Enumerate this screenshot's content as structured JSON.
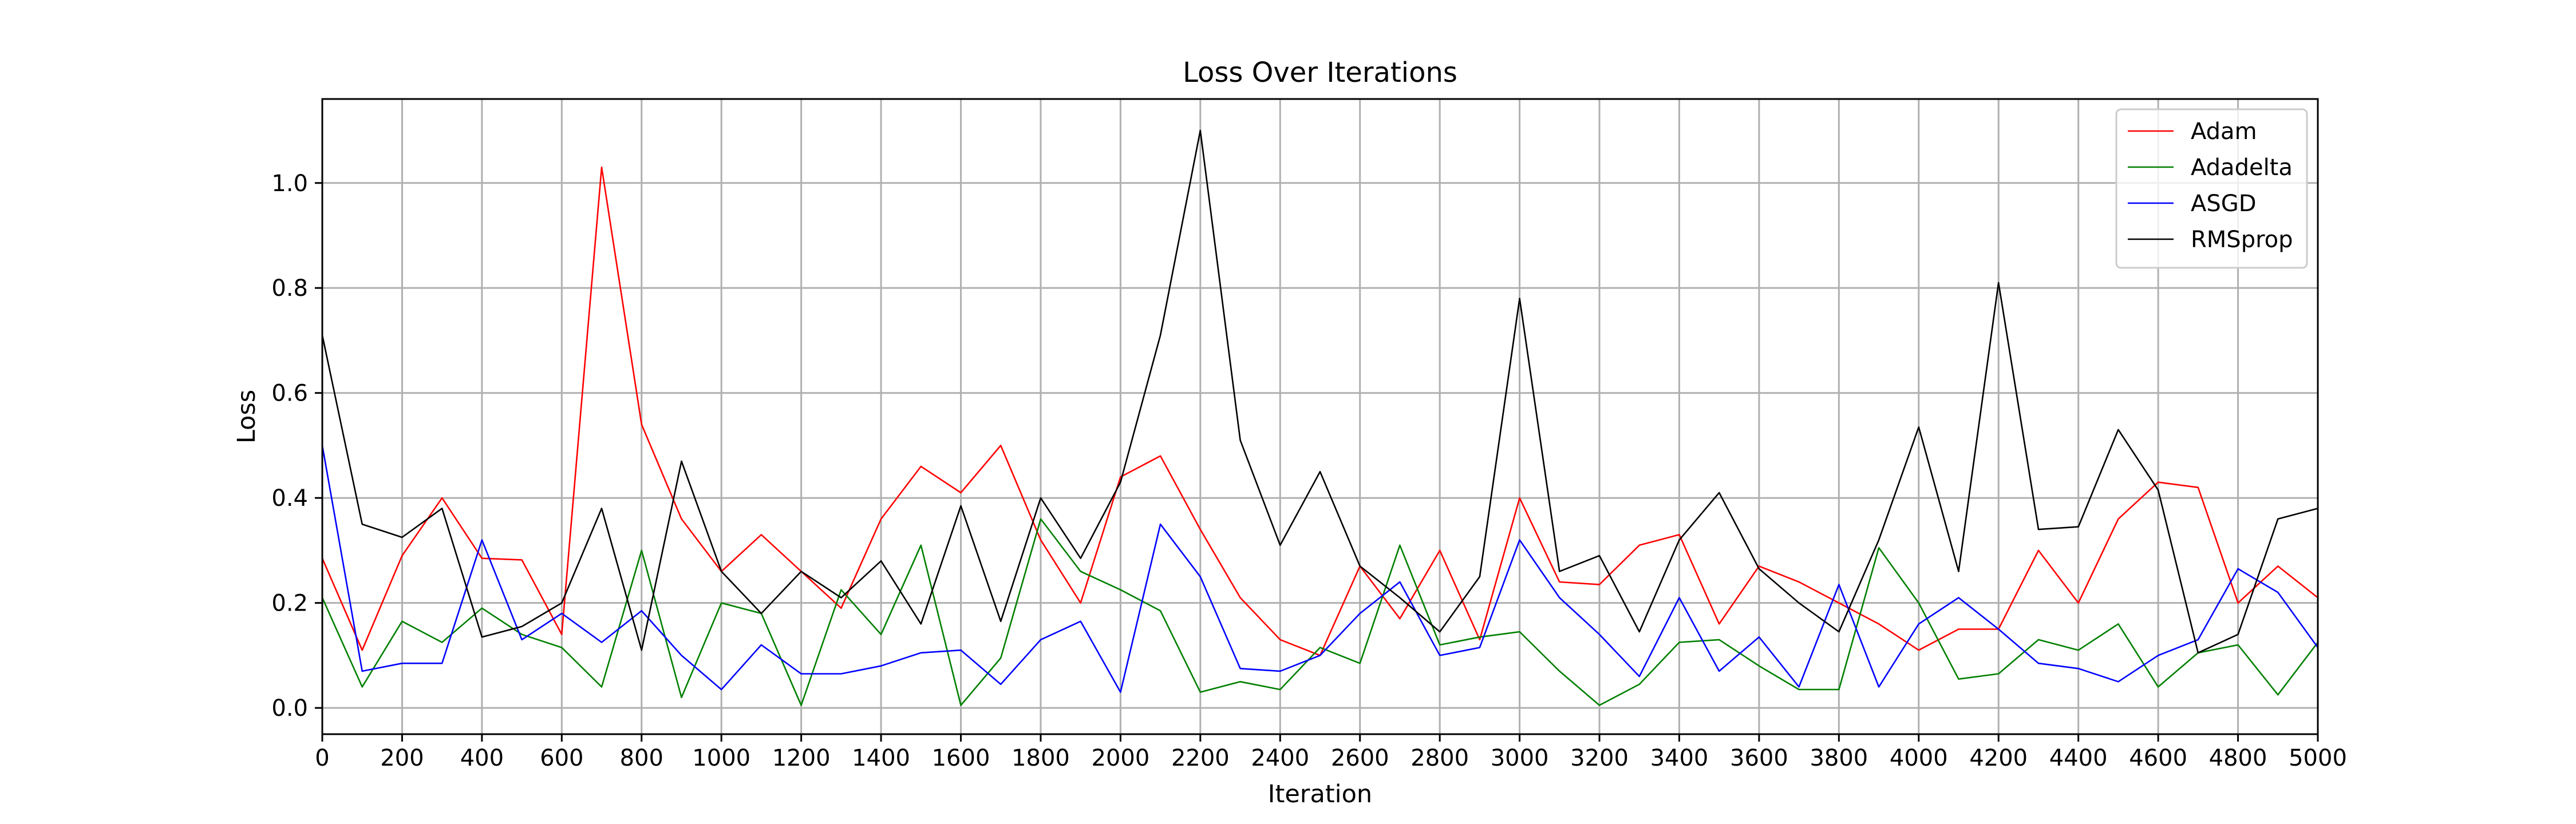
{
  "chart_data": {
    "type": "line",
    "title": "Loss Over Iterations",
    "xlabel": "Iteration",
    "ylabel": "Loss",
    "xlim": [
      0,
      5000
    ],
    "ylim": [
      -0.05,
      1.16
    ],
    "xticks": [
      0,
      200,
      400,
      600,
      800,
      1000,
      1200,
      1400,
      1600,
      1800,
      2000,
      2200,
      2400,
      2600,
      2800,
      3000,
      3200,
      3400,
      3600,
      3800,
      4000,
      4200,
      4400,
      4600,
      4800,
      5000
    ],
    "yticks": [
      0.0,
      0.2,
      0.4,
      0.6,
      0.8,
      1.0
    ],
    "ytick_labels": [
      "0.0",
      "0.2",
      "0.4",
      "0.6",
      "0.8",
      "1.0"
    ],
    "grid": true,
    "legend_position": "top-right",
    "x": [
      0,
      100,
      200,
      300,
      400,
      500,
      600,
      700,
      800,
      900,
      1000,
      1100,
      1200,
      1300,
      1400,
      1500,
      1600,
      1700,
      1800,
      1900,
      2000,
      2100,
      2200,
      2300,
      2400,
      2500,
      2600,
      2700,
      2800,
      2900,
      3000,
      3100,
      3200,
      3300,
      3400,
      3500,
      3600,
      3700,
      3800,
      3900,
      4000,
      4100,
      4200,
      4300,
      4400,
      4500,
      4600,
      4700,
      4800,
      4900,
      5000
    ],
    "series": [
      {
        "name": "Adam",
        "color": "#ff0000",
        "values": [
          0.285,
          0.11,
          0.29,
          0.4,
          0.285,
          0.282,
          0.14,
          1.03,
          0.54,
          0.36,
          0.26,
          0.33,
          0.26,
          0.19,
          0.36,
          0.46,
          0.41,
          0.5,
          0.32,
          0.2,
          0.44,
          0.48,
          0.34,
          0.21,
          0.13,
          0.1,
          0.27,
          0.17,
          0.3,
          0.13,
          0.4,
          0.24,
          0.235,
          0.31,
          0.33,
          0.16,
          0.27,
          0.24,
          0.2,
          0.16,
          0.11,
          0.15,
          0.15,
          0.3,
          0.2,
          0.36,
          0.43,
          0.42,
          0.2,
          0.27,
          0.21
        ]
      },
      {
        "name": "Adadelta",
        "color": "#008000",
        "values": [
          0.21,
          0.04,
          0.165,
          0.125,
          0.19,
          0.14,
          0.115,
          0.04,
          0.3,
          0.02,
          0.2,
          0.18,
          0.005,
          0.225,
          0.14,
          0.31,
          0.005,
          0.095,
          0.36,
          0.26,
          0.225,
          0.185,
          0.03,
          0.05,
          0.035,
          0.115,
          0.085,
          0.31,
          0.12,
          0.135,
          0.145,
          0.07,
          0.005,
          0.045,
          0.125,
          0.13,
          0.08,
          0.035,
          0.035,
          0.305,
          0.2,
          0.055,
          0.065,
          0.13,
          0.11,
          0.16,
          0.04,
          0.105,
          0.12,
          0.025,
          0.125
        ]
      },
      {
        "name": "ASGD",
        "color": "#0000ff",
        "values": [
          0.5,
          0.07,
          0.085,
          0.085,
          0.32,
          0.13,
          0.18,
          0.125,
          0.185,
          0.1,
          0.035,
          0.12,
          0.065,
          0.065,
          0.08,
          0.105,
          0.11,
          0.045,
          0.13,
          0.165,
          0.03,
          0.35,
          0.25,
          0.075,
          0.07,
          0.1,
          0.18,
          0.24,
          0.1,
          0.115,
          0.32,
          0.21,
          0.14,
          0.06,
          0.21,
          0.07,
          0.135,
          0.04,
          0.235,
          0.04,
          0.16,
          0.21,
          0.15,
          0.085,
          0.075,
          0.05,
          0.1,
          0.13,
          0.265,
          0.22,
          0.115
        ]
      },
      {
        "name": "RMSprop",
        "color": "#000000",
        "values": [
          0.71,
          0.35,
          0.325,
          0.38,
          0.135,
          0.155,
          0.2,
          0.38,
          0.11,
          0.47,
          0.26,
          0.18,
          0.26,
          0.21,
          0.28,
          0.16,
          0.385,
          0.165,
          0.4,
          0.285,
          0.43,
          0.71,
          1.1,
          0.51,
          0.31,
          0.45,
          0.27,
          0.21,
          0.145,
          0.25,
          0.78,
          0.26,
          0.29,
          0.145,
          0.32,
          0.41,
          0.265,
          0.2,
          0.145,
          0.32,
          0.535,
          0.26,
          0.81,
          0.34,
          0.345,
          0.53,
          0.415,
          0.105,
          0.14,
          0.36,
          0.38
        ]
      }
    ]
  }
}
